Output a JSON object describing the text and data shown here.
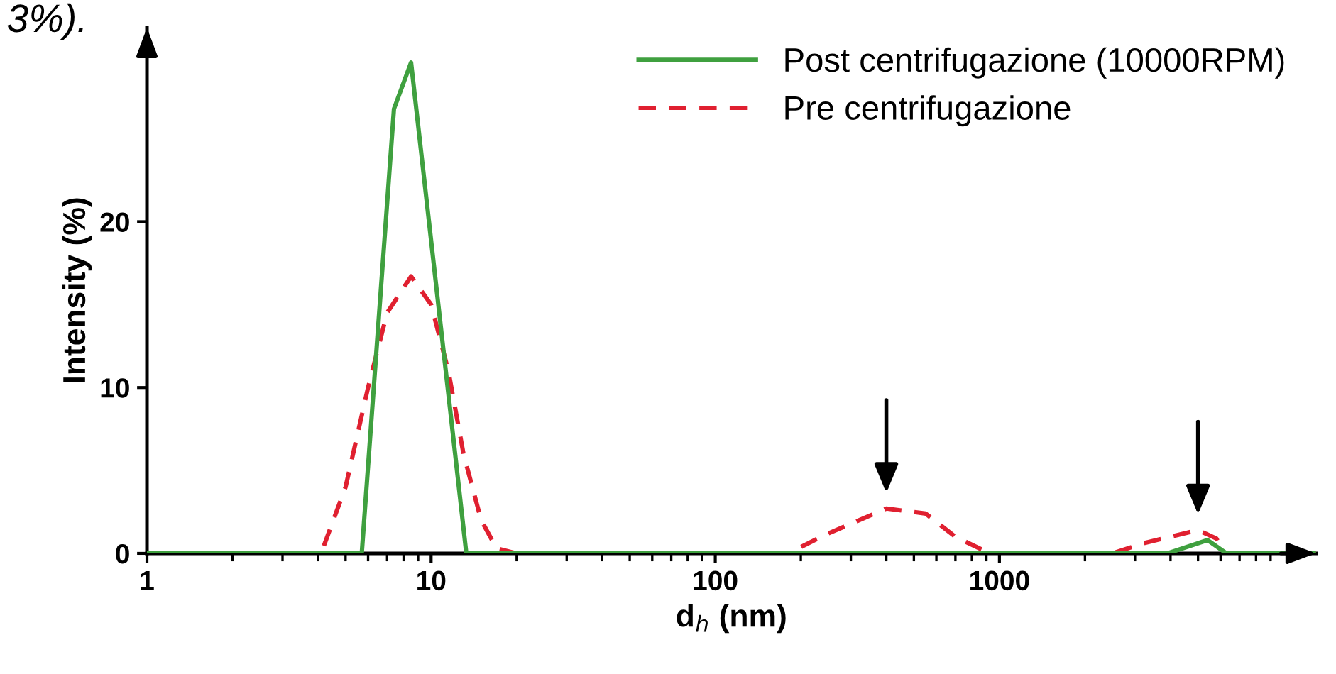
{
  "chart_data": {
    "type": "line",
    "xlabel": "d$_{h}$ (nm)",
    "ylabel": "Intensity (%)",
    "log": "x",
    "xlim": [
      1,
      13000
    ],
    "xticks": [
      1,
      10,
      100,
      1000
    ],
    "ylim": [
      0,
      31.7
    ],
    "yticks": [
      0,
      10,
      20
    ],
    "legend": "top right",
    "grid": false,
    "annotations": [
      "3%)."
    ],
    "series": [
      {
        "name": "Pre centrifugazione",
        "color": "#e02030",
        "line_style": "dashed",
        "x": [
          1,
          4.1,
          5.0,
          6.0,
          7.0,
          8.5,
          10,
          11.5,
          13,
          15,
          17,
          20,
          180,
          250,
          400,
          550,
          700,
          900,
          1000,
          2500,
          3200,
          5000,
          5800,
          6200,
          13000
        ],
        "values": [
          0,
          0,
          4,
          10,
          14.5,
          16.7,
          15,
          11,
          6,
          2,
          0.3,
          0,
          0,
          1.2,
          2.7,
          2.4,
          1.0,
          0.1,
          0,
          0,
          0.6,
          1.4,
          0.9,
          0,
          0
        ]
      },
      {
        "name": "Post centrifugazione (10000RPM)",
        "color": "#3fa03f",
        "line_style": "solid",
        "x": [
          1,
          5.7,
          7.4,
          8.5,
          13.3,
          3900,
          5400,
          6300,
          13000
        ],
        "values": [
          0,
          0,
          26.8,
          29.6,
          0,
          0,
          0.8,
          0,
          0
        ]
      }
    ]
  }
}
